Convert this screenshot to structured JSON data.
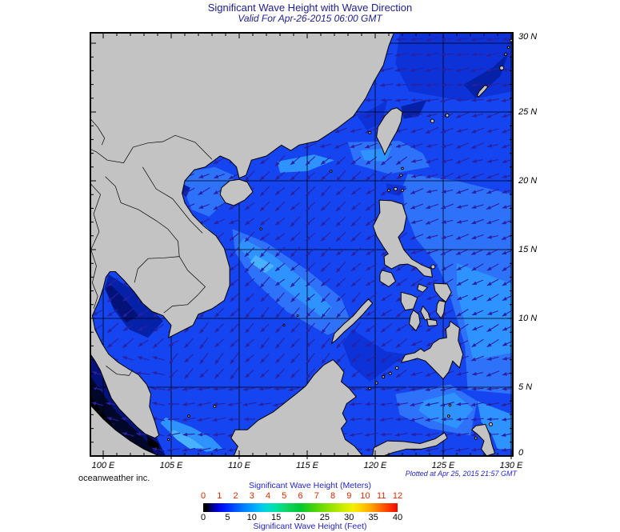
{
  "title": "Significant Wave Height with Wave Direction",
  "subtitle": "Valid For Apr-26-2015 06:00 GMT",
  "credit": "oceanweather inc.",
  "plotted_at": "Plotted at Apr 25, 2015 21:57 GMT",
  "axes": {
    "lon_labels": [
      "100 E",
      "105 E",
      "110 E",
      "115 E",
      "120 E",
      "125 E",
      "130 E"
    ],
    "lat_labels": [
      "30 N",
      "25 N",
      "20 N",
      "15 N",
      "10 N",
      "5 N",
      "0"
    ]
  },
  "colorbar": {
    "title_meters": "Significant Wave Height (Meters)",
    "title_feet": "Significant Wave Height (Feet)",
    "meters_ticks": [
      "0",
      "1",
      "2",
      "3",
      "4",
      "5",
      "6",
      "7",
      "8",
      "9",
      "10",
      "11",
      "12"
    ],
    "feet_ticks": [
      "0",
      "5",
      "10",
      "15",
      "20",
      "25",
      "30",
      "35",
      "40"
    ],
    "meters_range": [
      0,
      12
    ],
    "feet_range": [
      0,
      40
    ],
    "tick_color_meters": "#e02800",
    "tick_color_feet": "#000000",
    "title_color": "#2424cc",
    "gradient": [
      [
        0,
        "#000000"
      ],
      [
        0.015,
        "#000000"
      ],
      [
        0.04,
        "#00006e"
      ],
      [
        0.07,
        "#0000d2"
      ],
      [
        0.11,
        "#0018ff"
      ],
      [
        0.16,
        "#004eff"
      ],
      [
        0.21,
        "#0080ff"
      ],
      [
        0.26,
        "#00a8ff"
      ],
      [
        0.3,
        "#00c8ee"
      ],
      [
        0.34,
        "#00dcc8"
      ],
      [
        0.38,
        "#00e09e"
      ],
      [
        0.43,
        "#10d465"
      ],
      [
        0.5,
        "#00c832"
      ],
      [
        0.56,
        "#3cd20e"
      ],
      [
        0.62,
        "#78dc00"
      ],
      [
        0.68,
        "#aae600"
      ],
      [
        0.73,
        "#d2ee00"
      ],
      [
        0.77,
        "#f4ee00"
      ],
      [
        0.81,
        "#ffd200"
      ],
      [
        0.86,
        "#ffa800"
      ],
      [
        0.9,
        "#ff7800"
      ],
      [
        0.95,
        "#ff3c00"
      ],
      [
        1,
        "#ee0800"
      ]
    ]
  },
  "map": {
    "lon_range": [
      99.06,
      130.1
    ],
    "lat_range": [
      0,
      30.76
    ],
    "grid_interval_deg": 5,
    "arrow_meaning": "wave direction",
    "colors": {
      "land": "#c3c3c3",
      "coast": "#000000",
      "grid": "#000000",
      "frame": "#000000",
      "arrow": "#2a20a0",
      "ocean_base": "#1545f0",
      "ocean_light1": "#2e72fa",
      "ocean_light2": "#2f93ff",
      "ocean_light3": "#49b2ff",
      "ocean_dark1": "#0c32d8",
      "ocean_dark2": "#0521a8",
      "ocean_navy": "#021278",
      "ocean_near_black": "#000728",
      "ocean_black": "#000000"
    }
  }
}
